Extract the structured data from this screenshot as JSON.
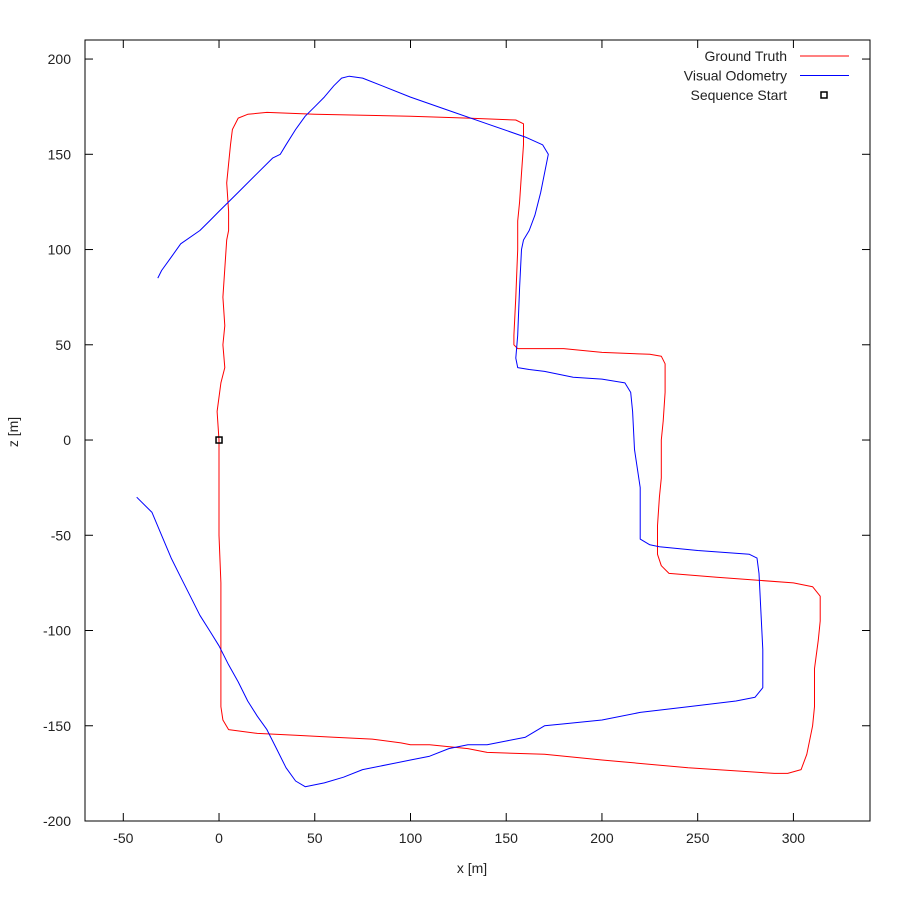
{
  "chart_data": {
    "type": "line",
    "title": "",
    "xlabel": "x [m]",
    "ylabel": "z [m]",
    "xlim": [
      -70,
      340
    ],
    "ylim": [
      -200,
      210
    ],
    "grid": false,
    "legend_position": "top-right",
    "xticks": [
      -50,
      0,
      50,
      100,
      150,
      200,
      250,
      300
    ],
    "yticks": [
      -200,
      -150,
      -100,
      -50,
      0,
      50,
      100,
      150,
      200
    ],
    "series": [
      {
        "name": "Ground Truth",
        "color": "#ff0000",
        "points": [
          [
            0,
            0
          ],
          [
            -1,
            15
          ],
          [
            1,
            30
          ],
          [
            3,
            38
          ],
          [
            2,
            50
          ],
          [
            3,
            60
          ],
          [
            2,
            75
          ],
          [
            3,
            90
          ],
          [
            4,
            105
          ],
          [
            5,
            110
          ],
          [
            5,
            120
          ],
          [
            4,
            135
          ],
          [
            5,
            145
          ],
          [
            6,
            155
          ],
          [
            7,
            163
          ],
          [
            10,
            169
          ],
          [
            15,
            171
          ],
          [
            25,
            172
          ],
          [
            50,
            171
          ],
          [
            100,
            170
          ],
          [
            130,
            169
          ],
          [
            155,
            168
          ],
          [
            159,
            166
          ],
          [
            159,
            155
          ],
          [
            158,
            140
          ],
          [
            157,
            125
          ],
          [
            156,
            115
          ],
          [
            156,
            100
          ],
          [
            155,
            75
          ],
          [
            154,
            55
          ],
          [
            154,
            50
          ],
          [
            156,
            48
          ],
          [
            180,
            48
          ],
          [
            200,
            46
          ],
          [
            225,
            45
          ],
          [
            231,
            44
          ],
          [
            233,
            40
          ],
          [
            233,
            25
          ],
          [
            232,
            10
          ],
          [
            231,
            0
          ],
          [
            231,
            -10
          ],
          [
            231,
            -20
          ],
          [
            230,
            -30
          ],
          [
            229,
            -45
          ],
          [
            229,
            -60
          ],
          [
            231,
            -66
          ],
          [
            235,
            -70
          ],
          [
            260,
            -72
          ],
          [
            300,
            -75
          ],
          [
            310,
            -77
          ],
          [
            314,
            -82
          ],
          [
            314,
            -95
          ],
          [
            313,
            -105
          ],
          [
            311,
            -120
          ],
          [
            311,
            -140
          ],
          [
            310,
            -150
          ],
          [
            307,
            -165
          ],
          [
            304,
            -173
          ],
          [
            297,
            -175
          ],
          [
            290,
            -175
          ],
          [
            245,
            -172
          ],
          [
            200,
            -168
          ],
          [
            170,
            -165
          ],
          [
            140,
            -164
          ],
          [
            130,
            -162
          ],
          [
            110,
            -160
          ],
          [
            100,
            -160
          ],
          [
            95,
            -159
          ],
          [
            80,
            -157
          ],
          [
            60,
            -156
          ],
          [
            40,
            -155
          ],
          [
            20,
            -154
          ],
          [
            5,
            -152
          ],
          [
            2,
            -147
          ],
          [
            1,
            -140
          ],
          [
            1,
            -120
          ],
          [
            1,
            -100
          ],
          [
            1,
            -75
          ],
          [
            0,
            -50
          ],
          [
            0,
            -25
          ],
          [
            0,
            0
          ]
        ]
      },
      {
        "name": "Visual Odometry",
        "color": "#0000ff",
        "points": [
          [
            -43,
            -30
          ],
          [
            -35,
            -38
          ],
          [
            -30,
            -50
          ],
          [
            -25,
            -62
          ],
          [
            -20,
            -72
          ],
          [
            -15,
            -82
          ],
          [
            -10,
            -92
          ],
          [
            -5,
            -100
          ],
          [
            0,
            -108
          ],
          [
            5,
            -118
          ],
          [
            10,
            -127
          ],
          [
            15,
            -137
          ],
          [
            20,
            -145
          ],
          [
            25,
            -152
          ],
          [
            30,
            -162
          ],
          [
            35,
            -172
          ],
          [
            40,
            -179
          ],
          [
            45,
            -182
          ],
          [
            55,
            -180
          ],
          [
            65,
            -177
          ],
          [
            75,
            -173
          ],
          [
            90,
            -170
          ],
          [
            100,
            -168
          ],
          [
            110,
            -166
          ],
          [
            120,
            -162
          ],
          [
            130,
            -160
          ],
          [
            140,
            -160
          ],
          [
            150,
            -158
          ],
          [
            160,
            -156
          ],
          [
            170,
            -150
          ],
          [
            180,
            -149
          ],
          [
            200,
            -147
          ],
          [
            220,
            -143
          ],
          [
            245,
            -140
          ],
          [
            270,
            -137
          ],
          [
            280,
            -135
          ],
          [
            284,
            -130
          ],
          [
            284,
            -110
          ],
          [
            283,
            -90
          ],
          [
            282,
            -70
          ],
          [
            281,
            -62
          ],
          [
            277,
            -60
          ],
          [
            250,
            -58
          ],
          [
            230,
            -56
          ],
          [
            225,
            -55
          ],
          [
            220,
            -52
          ],
          [
            220,
            -45
          ],
          [
            220,
            -25
          ],
          [
            217,
            -5
          ],
          [
            216,
            15
          ],
          [
            215,
            25
          ],
          [
            212,
            30
          ],
          [
            200,
            32
          ],
          [
            185,
            33
          ],
          [
            170,
            36
          ],
          [
            162,
            37
          ],
          [
            156,
            38
          ],
          [
            155,
            43
          ],
          [
            156,
            55
          ],
          [
            157,
            80
          ],
          [
            158,
            100
          ],
          [
            159,
            105
          ],
          [
            162,
            110
          ],
          [
            165,
            118
          ],
          [
            168,
            130
          ],
          [
            172,
            150
          ],
          [
            169,
            155
          ],
          [
            160,
            159
          ],
          [
            140,
            166
          ],
          [
            120,
            173
          ],
          [
            100,
            180
          ],
          [
            85,
            186
          ],
          [
            75,
            190
          ],
          [
            68,
            191
          ],
          [
            64,
            190
          ],
          [
            60,
            186
          ],
          [
            55,
            180
          ],
          [
            50,
            175
          ],
          [
            45,
            170
          ],
          [
            40,
            163
          ],
          [
            35,
            155
          ],
          [
            32,
            150
          ],
          [
            28,
            148
          ],
          [
            20,
            140
          ],
          [
            10,
            130
          ],
          [
            0,
            120
          ],
          [
            -5,
            115
          ],
          [
            -10,
            110
          ],
          [
            -20,
            103
          ],
          [
            -25,
            96
          ],
          [
            -30,
            89
          ],
          [
            -32,
            85
          ]
        ]
      },
      {
        "name": "Sequence Start",
        "color": "#000000",
        "marker": "square",
        "points": [
          [
            0,
            0
          ]
        ]
      }
    ]
  }
}
